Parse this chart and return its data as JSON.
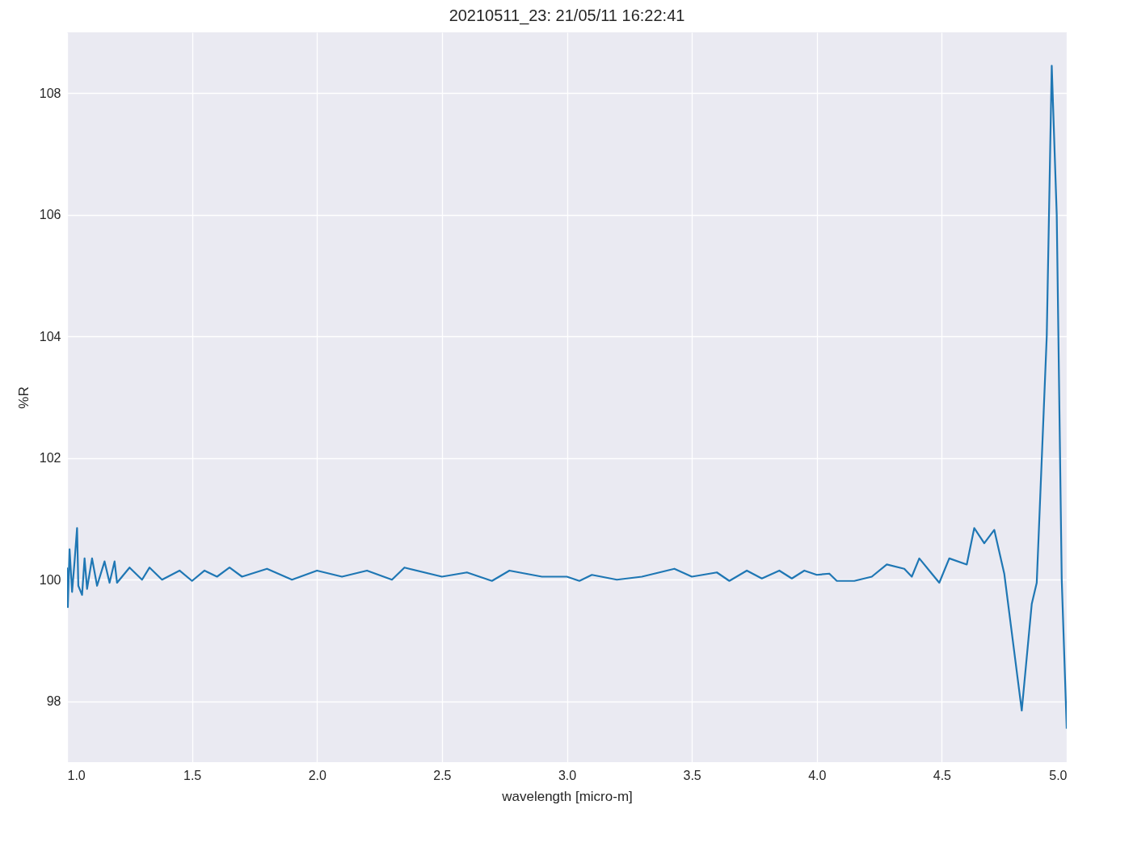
{
  "chart_data": {
    "type": "line",
    "title": "20210511_23:  21/05/11 16:22:41",
    "xlabel": "wavelength [micro-m]",
    "ylabel": "%R",
    "xlim": [
      1.0,
      5.0
    ],
    "xticks": [
      {
        "value": 1.0,
        "label": "1.0"
      },
      {
        "value": 1.5,
        "label": "1.5"
      },
      {
        "value": 2.0,
        "label": "2.0"
      },
      {
        "value": 2.5,
        "label": "2.5"
      },
      {
        "value": 3.0,
        "label": "3.0"
      },
      {
        "value": 3.5,
        "label": "3.5"
      },
      {
        "value": 4.0,
        "label": "4.0"
      },
      {
        "value": 4.5,
        "label": "4.5"
      },
      {
        "value": 5.0,
        "label": "5.0"
      }
    ],
    "ylim": [
      97,
      109
    ],
    "yticks": [
      98,
      100,
      102,
      104,
      106,
      108
    ],
    "grid": true,
    "legend": false,
    "marker": "none",
    "line_style": "solid",
    "series": [
      {
        "color": "#1f77b4",
        "x": [
          1.0,
          1.003,
          1.01,
          1.02,
          1.03,
          1.04,
          1.045,
          1.06,
          1.07,
          1.08,
          1.1,
          1.12,
          1.15,
          1.17,
          1.19,
          1.2,
          1.25,
          1.3,
          1.33,
          1.38,
          1.45,
          1.5,
          1.55,
          1.6,
          1.65,
          1.7,
          1.8,
          1.9,
          2.0,
          2.1,
          2.2,
          2.3,
          2.35,
          2.5,
          2.6,
          2.7,
          2.77,
          2.9,
          3.0,
          3.05,
          3.1,
          3.2,
          3.3,
          3.43,
          3.5,
          3.6,
          3.65,
          3.72,
          3.78,
          3.85,
          3.9,
          3.95,
          4.0,
          4.05,
          4.08,
          4.15,
          4.22,
          4.28,
          4.35,
          4.38,
          4.41,
          4.46,
          4.49,
          4.53,
          4.6,
          4.63,
          4.67,
          4.71,
          4.75,
          4.82,
          4.86,
          4.88,
          4.92,
          4.94,
          4.96,
          4.98,
          5.0
        ],
        "values": [
          100.2,
          99.55,
          100.5,
          99.8,
          100.3,
          100.85,
          99.9,
          99.75,
          100.35,
          99.85,
          100.35,
          99.9,
          100.3,
          99.95,
          100.3,
          99.95,
          100.2,
          100.0,
          100.2,
          100.0,
          100.15,
          99.98,
          100.15,
          100.05,
          100.2,
          100.05,
          100.18,
          100.0,
          100.15,
          100.05,
          100.15,
          100.0,
          100.2,
          100.05,
          100.12,
          99.98,
          100.15,
          100.05,
          100.05,
          99.98,
          100.08,
          100.0,
          100.05,
          100.18,
          100.05,
          100.12,
          99.98,
          100.15,
          100.02,
          100.15,
          100.02,
          100.15,
          100.08,
          100.1,
          99.98,
          99.98,
          100.05,
          100.25,
          100.18,
          100.05,
          100.35,
          100.1,
          99.95,
          100.35,
          100.25,
          100.85,
          100.6,
          100.82,
          100.1,
          97.85,
          99.6,
          99.95,
          104,
          108.45,
          106,
          100,
          97.55
        ]
      }
    ]
  }
}
